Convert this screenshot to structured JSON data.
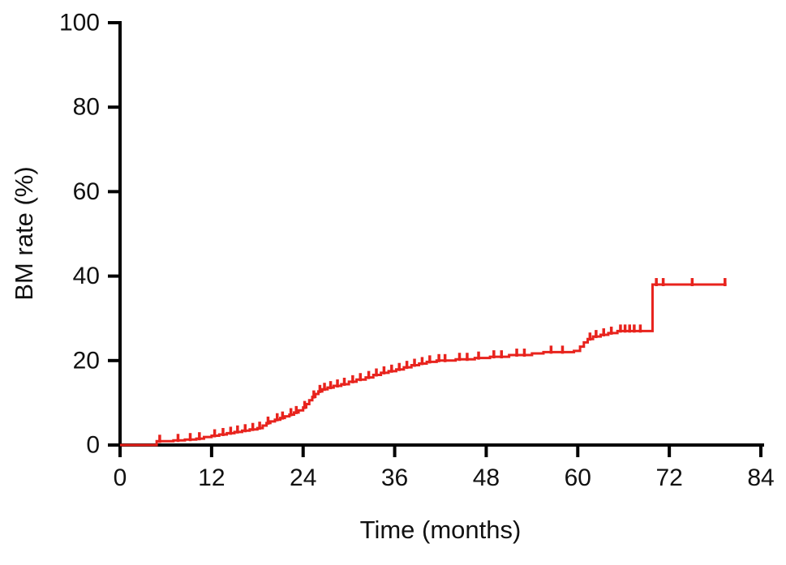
{
  "chart_data": {
    "type": "line",
    "subtype": "kaplan-meier-step",
    "title": "",
    "xlabel": "Time (months)",
    "ylabel": "BM rate (%)",
    "xlim": [
      0,
      84
    ],
    "ylim": [
      0,
      100
    ],
    "xticks": [
      0,
      12,
      24,
      36,
      48,
      60,
      72,
      84
    ],
    "yticks": [
      0,
      20,
      40,
      60,
      80,
      100
    ],
    "grid": "off",
    "legend": "none",
    "line_color": "#e8231d",
    "axis_color": "#000000",
    "background": "#ffffff",
    "steps": [
      [
        4.8,
        0.9
      ],
      [
        7.0,
        1.1
      ],
      [
        8.5,
        1.3
      ],
      [
        10.0,
        1.5
      ],
      [
        11.0,
        1.9
      ],
      [
        12.0,
        2.2
      ],
      [
        13.0,
        2.5
      ],
      [
        14.0,
        2.8
      ],
      [
        15.0,
        3.1
      ],
      [
        16.0,
        3.4
      ],
      [
        17.0,
        3.7
      ],
      [
        18.0,
        4.0
      ],
      [
        18.7,
        4.6
      ],
      [
        19.2,
        5.2
      ],
      [
        19.7,
        5.6
      ],
      [
        20.3,
        6.0
      ],
      [
        21.0,
        6.4
      ],
      [
        21.6,
        6.8
      ],
      [
        22.2,
        7.2
      ],
      [
        22.8,
        7.7
      ],
      [
        23.4,
        8.2
      ],
      [
        24.0,
        8.9
      ],
      [
        24.4,
        9.7
      ],
      [
        24.8,
        10.6
      ],
      [
        25.2,
        11.4
      ],
      [
        25.6,
        12.1
      ],
      [
        26.0,
        12.7
      ],
      [
        26.5,
        13.2
      ],
      [
        27.2,
        13.6
      ],
      [
        28.0,
        14.0
      ],
      [
        29.0,
        14.4
      ],
      [
        30.0,
        15.0
      ],
      [
        31.0,
        15.5
      ],
      [
        32.2,
        16.0
      ],
      [
        33.2,
        16.6
      ],
      [
        34.2,
        17.1
      ],
      [
        35.2,
        17.5
      ],
      [
        36.2,
        17.9
      ],
      [
        37.2,
        18.4
      ],
      [
        38.2,
        18.9
      ],
      [
        39.2,
        19.3
      ],
      [
        40.2,
        19.7
      ],
      [
        41.5,
        20.0
      ],
      [
        44.0,
        20.3
      ],
      [
        46.5,
        20.6
      ],
      [
        48.5,
        20.9
      ],
      [
        51.0,
        21.3
      ],
      [
        54.0,
        21.7
      ],
      [
        55.5,
        22.0
      ],
      [
        59.5,
        22.3
      ],
      [
        60.3,
        23.3
      ],
      [
        60.8,
        24.3
      ],
      [
        61.3,
        25.1
      ],
      [
        62.0,
        25.7
      ],
      [
        63.0,
        26.1
      ],
      [
        64.0,
        26.5
      ],
      [
        65.2,
        27.0
      ],
      [
        69.8,
        38.0
      ]
    ],
    "end_time": 79.5,
    "censor_times": [
      5.2,
      7.6,
      9.2,
      10.4,
      12.4,
      13.5,
      14.5,
      15.4,
      16.4,
      17.4,
      18.3,
      19.4,
      20.6,
      21.3,
      22.4,
      23.1,
      24.2,
      25.4,
      26.2,
      26.8,
      27.6,
      28.5,
      29.4,
      30.5,
      31.5,
      32.6,
      33.6,
      34.6,
      35.6,
      36.6,
      37.6,
      38.6,
      39.6,
      40.6,
      41.8,
      42.6,
      44.5,
      45.5,
      47.0,
      49.0,
      50.0,
      52.0,
      53.0,
      56.5,
      58.0,
      61.6,
      62.4,
      63.4,
      64.4,
      65.6,
      66.2,
      66.8,
      67.4,
      68.2,
      70.3,
      71.2,
      75.0,
      79.3
    ]
  }
}
